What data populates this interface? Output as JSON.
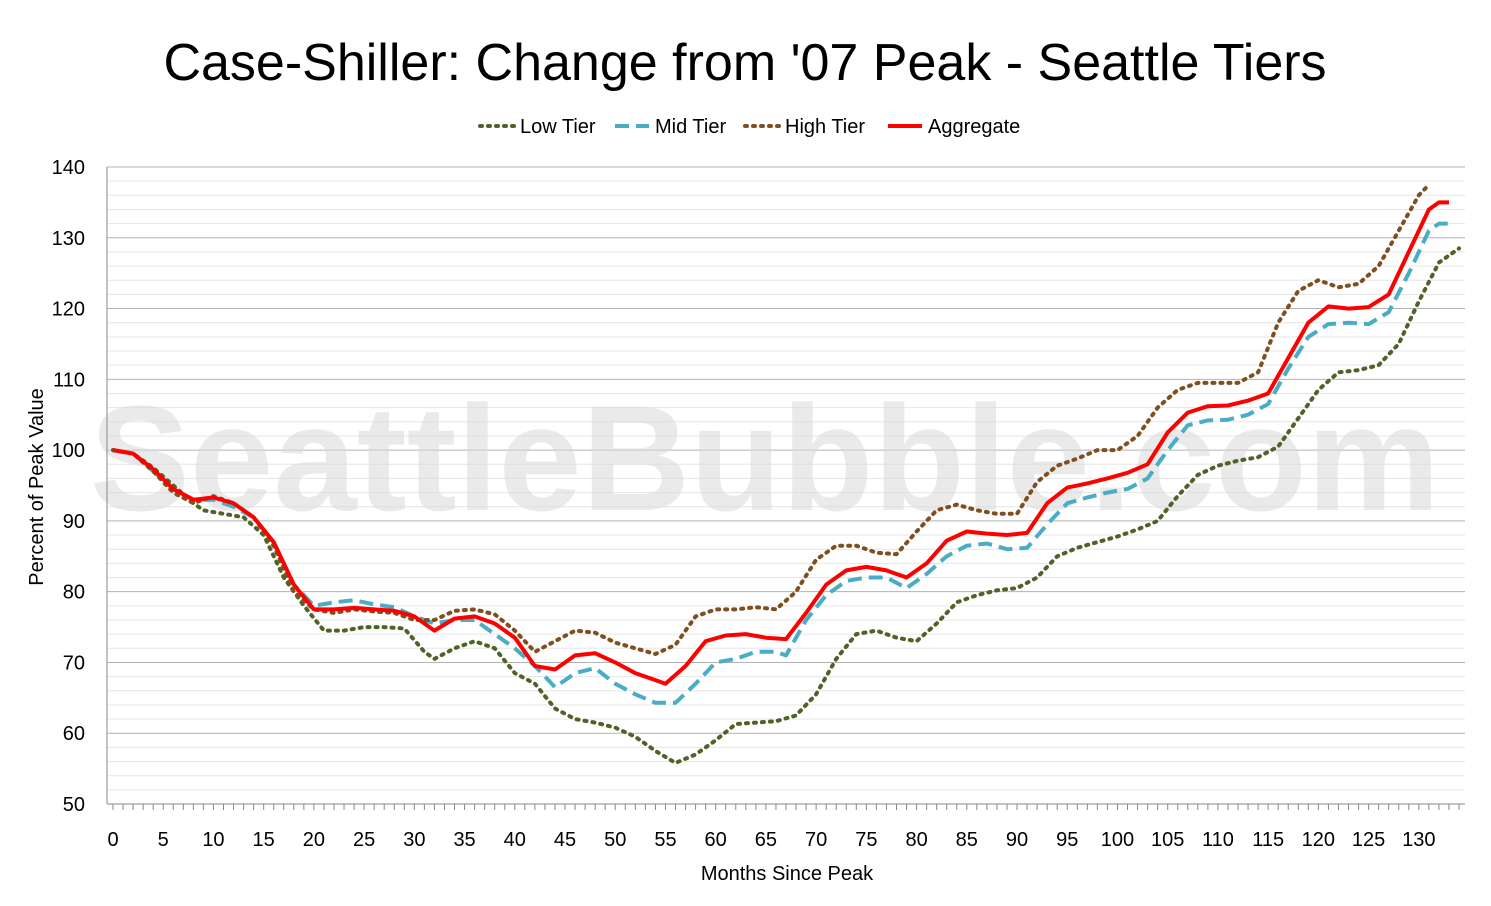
{
  "chart_data": {
    "type": "line",
    "title": "Case-Shiller: Change from '07 Peak - Seattle Tiers",
    "xlabel": "Months Since Peak",
    "ylabel": "Percent of Peak Value",
    "watermark": "SeattleBubble.com",
    "xlim": [
      0,
      134
    ],
    "ylim": [
      50,
      140
    ],
    "xticks": [
      0,
      5,
      10,
      15,
      20,
      25,
      30,
      35,
      40,
      45,
      50,
      55,
      60,
      65,
      70,
      75,
      80,
      85,
      90,
      95,
      100,
      105,
      110,
      115,
      120,
      125,
      130
    ],
    "yticks": [
      50,
      60,
      70,
      80,
      90,
      100,
      110,
      120,
      130,
      140
    ],
    "grid": true,
    "legend_position": "top",
    "series": [
      {
        "name": "Low Tier",
        "color": "#4f6228",
        "style": "dotted",
        "points": [
          [
            0,
            100
          ],
          [
            2,
            99.5
          ],
          [
            4,
            97.5
          ],
          [
            6,
            95
          ],
          [
            8,
            92.5
          ],
          [
            9,
            91.5
          ],
          [
            11,
            91
          ],
          [
            13,
            90.5
          ],
          [
            15,
            88
          ],
          [
            17,
            82
          ],
          [
            19,
            78
          ],
          [
            21,
            74.5
          ],
          [
            23,
            74.5
          ],
          [
            25,
            75
          ],
          [
            27,
            75
          ],
          [
            29,
            74.8
          ],
          [
            31,
            71.5
          ],
          [
            32,
            70.5
          ],
          [
            34,
            72
          ],
          [
            36,
            73
          ],
          [
            38,
            72
          ],
          [
            40,
            68.5
          ],
          [
            42,
            67
          ],
          [
            44,
            63.5
          ],
          [
            46,
            62
          ],
          [
            48,
            61.5
          ],
          [
            50,
            60.8
          ],
          [
            52,
            59.5
          ],
          [
            54,
            57.5
          ],
          [
            56,
            55.8
          ],
          [
            58,
            57
          ],
          [
            60,
            59
          ],
          [
            62,
            61.3
          ],
          [
            64,
            61.5
          ],
          [
            66,
            61.7
          ],
          [
            68,
            62.5
          ],
          [
            70,
            65.5
          ],
          [
            72,
            70.5
          ],
          [
            74,
            74
          ],
          [
            76,
            74.5
          ],
          [
            78,
            73.5
          ],
          [
            80,
            73
          ],
          [
            82,
            75.5
          ],
          [
            84,
            78.5
          ],
          [
            86,
            79.5
          ],
          [
            88,
            80.2
          ],
          [
            90,
            80.5
          ],
          [
            92,
            82
          ],
          [
            94,
            85
          ],
          [
            96,
            86.2
          ],
          [
            98,
            87
          ],
          [
            100,
            87.8
          ],
          [
            102,
            88.8
          ],
          [
            104,
            90
          ],
          [
            106,
            93.5
          ],
          [
            108,
            96.5
          ],
          [
            110,
            97.8
          ],
          [
            112,
            98.5
          ],
          [
            114,
            99
          ],
          [
            116,
            100.5
          ],
          [
            118,
            104.5
          ],
          [
            120,
            108.5
          ],
          [
            122,
            111
          ],
          [
            124,
            111.3
          ],
          [
            126,
            112
          ],
          [
            128,
            115
          ],
          [
            130,
            121
          ],
          [
            132,
            126.5
          ],
          [
            134,
            128.5
          ]
        ]
      },
      {
        "name": "Mid Tier",
        "color": "#4bacc6",
        "style": "dashed",
        "points": [
          [
            0,
            100
          ],
          [
            2,
            99.5
          ],
          [
            4,
            97
          ],
          [
            6,
            94.5
          ],
          [
            8,
            93
          ],
          [
            10,
            93
          ],
          [
            12,
            92
          ],
          [
            14,
            90.5
          ],
          [
            16,
            87
          ],
          [
            18,
            81
          ],
          [
            20,
            78
          ],
          [
            22,
            78.5
          ],
          [
            24,
            78.8
          ],
          [
            26,
            78.2
          ],
          [
            28,
            77.8
          ],
          [
            30,
            76.5
          ],
          [
            32,
            75.5
          ],
          [
            34,
            76
          ],
          [
            36,
            76
          ],
          [
            38,
            74
          ],
          [
            40,
            72
          ],
          [
            42,
            69.5
          ],
          [
            44,
            66.5
          ],
          [
            46,
            68.5
          ],
          [
            48,
            69.2
          ],
          [
            50,
            67
          ],
          [
            52,
            65.5
          ],
          [
            54,
            64.3
          ],
          [
            56,
            64.3
          ],
          [
            58,
            67
          ],
          [
            60,
            70
          ],
          [
            62,
            70.5
          ],
          [
            64,
            71.5
          ],
          [
            66,
            71.5
          ],
          [
            67,
            71
          ],
          [
            69,
            76
          ],
          [
            71,
            79.5
          ],
          [
            73,
            81.5
          ],
          [
            75,
            82
          ],
          [
            77,
            82
          ],
          [
            79,
            80.5
          ],
          [
            81,
            82.5
          ],
          [
            83,
            85
          ],
          [
            85,
            86.5
          ],
          [
            87,
            86.8
          ],
          [
            89,
            86
          ],
          [
            91,
            86.2
          ],
          [
            93,
            89.5
          ],
          [
            95,
            92.5
          ],
          [
            97,
            93.3
          ],
          [
            99,
            94
          ],
          [
            101,
            94.5
          ],
          [
            103,
            96
          ],
          [
            105,
            100
          ],
          [
            107,
            103.5
          ],
          [
            109,
            104.2
          ],
          [
            111,
            104.3
          ],
          [
            113,
            105
          ],
          [
            115,
            106.5
          ],
          [
            117,
            111.5
          ],
          [
            119,
            116
          ],
          [
            121,
            117.8
          ],
          [
            123,
            118
          ],
          [
            125,
            117.8
          ],
          [
            127,
            119.5
          ],
          [
            129,
            125
          ],
          [
            131,
            131
          ],
          [
            132,
            132
          ],
          [
            133,
            132
          ]
        ]
      },
      {
        "name": "High Tier",
        "color": "#7f4f1f",
        "style": "dotted",
        "points": [
          [
            0,
            100
          ],
          [
            2,
            99.5
          ],
          [
            4,
            97
          ],
          [
            6,
            94
          ],
          [
            8,
            92.5
          ],
          [
            10,
            93.5
          ],
          [
            12,
            92.5
          ],
          [
            14,
            90.5
          ],
          [
            16,
            86.5
          ],
          [
            18,
            80
          ],
          [
            20,
            77.5
          ],
          [
            22,
            77
          ],
          [
            24,
            77.5
          ],
          [
            26,
            77.2
          ],
          [
            28,
            77
          ],
          [
            30,
            76
          ],
          [
            32,
            76
          ],
          [
            34,
            77.3
          ],
          [
            36,
            77.5
          ],
          [
            38,
            76.8
          ],
          [
            40,
            74.5
          ],
          [
            42,
            71.5
          ],
          [
            44,
            73
          ],
          [
            46,
            74.5
          ],
          [
            48,
            74.2
          ],
          [
            50,
            72.8
          ],
          [
            52,
            72
          ],
          [
            54,
            71.2
          ],
          [
            56,
            72.5
          ],
          [
            58,
            76.5
          ],
          [
            60,
            77.5
          ],
          [
            62,
            77.5
          ],
          [
            64,
            77.8
          ],
          [
            66,
            77.5
          ],
          [
            68,
            80
          ],
          [
            70,
            84.5
          ],
          [
            72,
            86.5
          ],
          [
            74,
            86.5
          ],
          [
            76,
            85.5
          ],
          [
            78,
            85.3
          ],
          [
            80,
            88.5
          ],
          [
            82,
            91.5
          ],
          [
            84,
            92.3
          ],
          [
            86,
            91.5
          ],
          [
            88,
            91
          ],
          [
            90,
            91
          ],
          [
            92,
            95.5
          ],
          [
            94,
            97.8
          ],
          [
            96,
            98.8
          ],
          [
            98,
            100
          ],
          [
            100,
            100
          ],
          [
            102,
            102
          ],
          [
            104,
            106
          ],
          [
            106,
            108.5
          ],
          [
            108,
            109.5
          ],
          [
            110,
            109.5
          ],
          [
            112,
            109.5
          ],
          [
            114,
            111
          ],
          [
            116,
            118
          ],
          [
            118,
            122.5
          ],
          [
            120,
            124
          ],
          [
            122,
            123
          ],
          [
            124,
            123.5
          ],
          [
            126,
            126
          ],
          [
            128,
            131
          ],
          [
            130,
            136
          ],
          [
            131,
            137.5
          ]
        ]
      },
      {
        "name": "Aggregate",
        "color": "#ff0000",
        "style": "solid",
        "points": [
          [
            0,
            100
          ],
          [
            2,
            99.5
          ],
          [
            4,
            97.3
          ],
          [
            6,
            94.5
          ],
          [
            8,
            93
          ],
          [
            10,
            93.3
          ],
          [
            12,
            92.5
          ],
          [
            14,
            90.5
          ],
          [
            16,
            87
          ],
          [
            18,
            81
          ],
          [
            20,
            77.5
          ],
          [
            22,
            77.5
          ],
          [
            24,
            77.7
          ],
          [
            26,
            77.5
          ],
          [
            28,
            77.3
          ],
          [
            30,
            76.5
          ],
          [
            32,
            74.5
          ],
          [
            34,
            76.2
          ],
          [
            36,
            76.5
          ],
          [
            38,
            75.5
          ],
          [
            40,
            73.5
          ],
          [
            42,
            69.5
          ],
          [
            44,
            69
          ],
          [
            46,
            71
          ],
          [
            48,
            71.3
          ],
          [
            50,
            70
          ],
          [
            52,
            68.5
          ],
          [
            54,
            67.5
          ],
          [
            55,
            67
          ],
          [
            57,
            69.5
          ],
          [
            59,
            73
          ],
          [
            61,
            73.8
          ],
          [
            63,
            74
          ],
          [
            65,
            73.5
          ],
          [
            67,
            73.3
          ],
          [
            69,
            77
          ],
          [
            71,
            81
          ],
          [
            73,
            83
          ],
          [
            75,
            83.5
          ],
          [
            77,
            83
          ],
          [
            79,
            82
          ],
          [
            81,
            84
          ],
          [
            83,
            87.2
          ],
          [
            85,
            88.5
          ],
          [
            87,
            88.2
          ],
          [
            89,
            88
          ],
          [
            91,
            88.3
          ],
          [
            93,
            92.5
          ],
          [
            95,
            94.7
          ],
          [
            97,
            95.3
          ],
          [
            99,
            96
          ],
          [
            101,
            96.8
          ],
          [
            103,
            98
          ],
          [
            105,
            102.5
          ],
          [
            107,
            105.3
          ],
          [
            109,
            106.2
          ],
          [
            111,
            106.3
          ],
          [
            113,
            107
          ],
          [
            115,
            108
          ],
          [
            117,
            113
          ],
          [
            119,
            118
          ],
          [
            121,
            120.3
          ],
          [
            123,
            120
          ],
          [
            125,
            120.2
          ],
          [
            127,
            122
          ],
          [
            129,
            128
          ],
          [
            131,
            134
          ],
          [
            132,
            135
          ],
          [
            133,
            135
          ]
        ]
      }
    ]
  }
}
